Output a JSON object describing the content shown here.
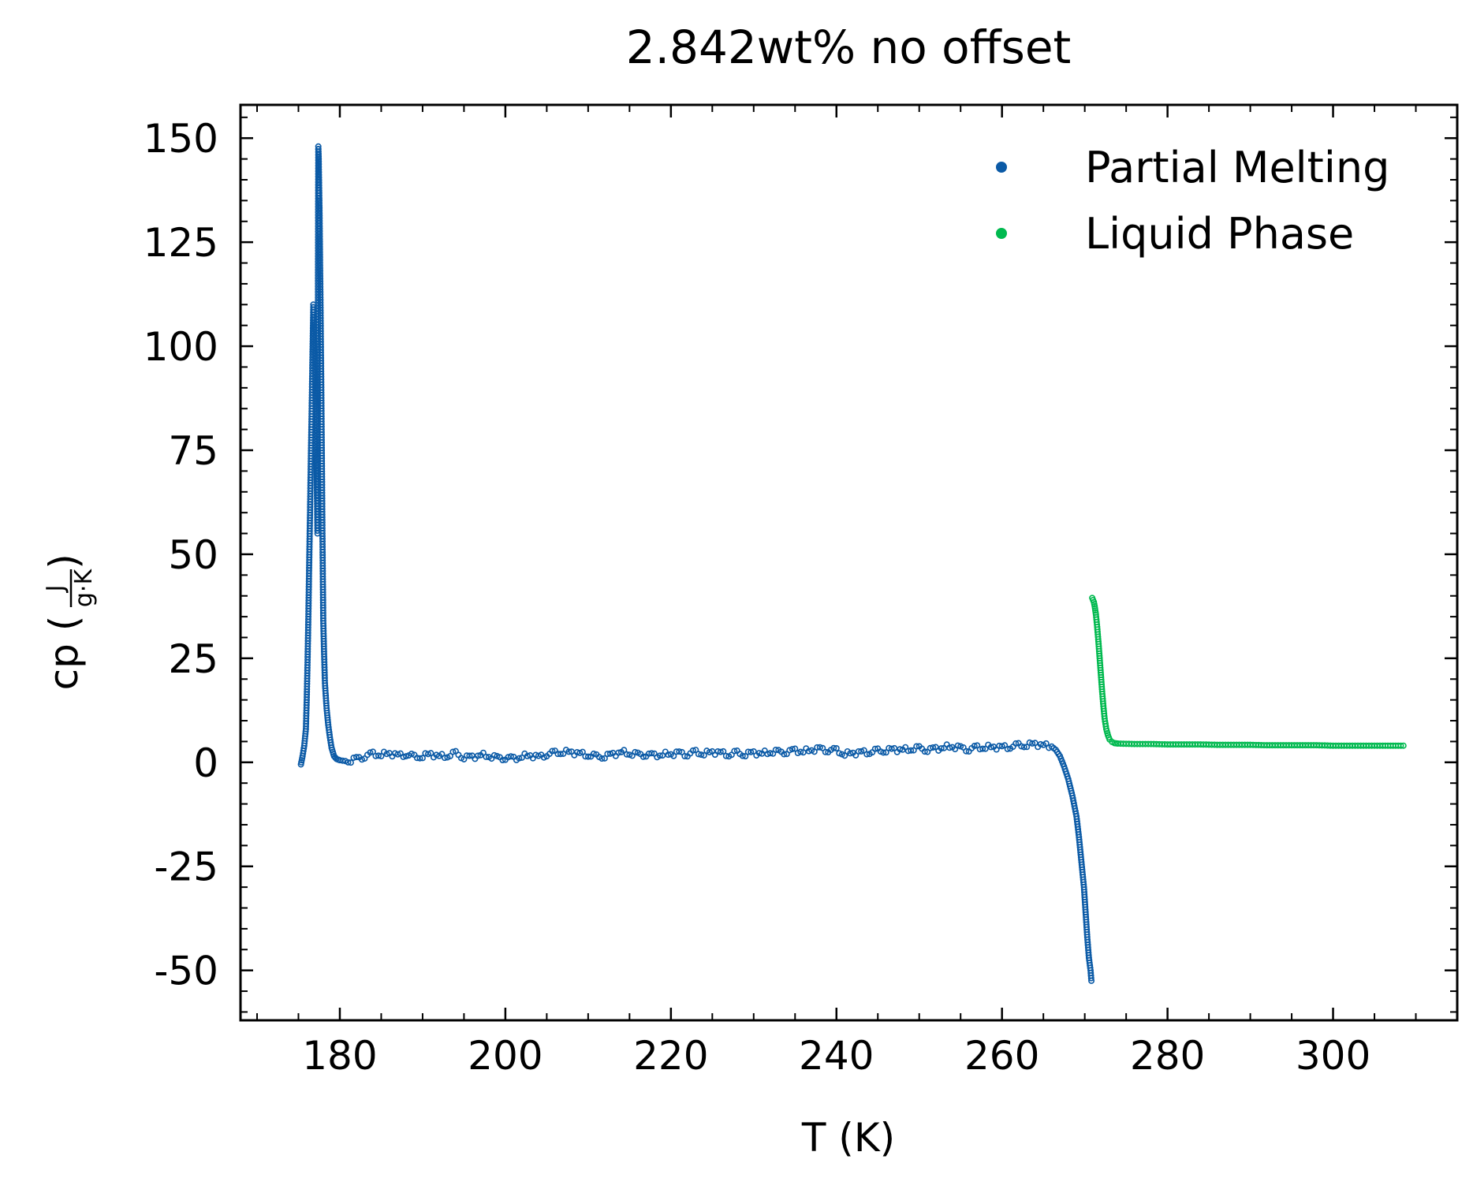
{
  "chart_data": {
    "type": "scatter",
    "title": "2.842wt% no offset",
    "xlabel": "T (K)",
    "ylabel": {
      "text": "cp (",
      "frac_num": "J",
      "frac_den": "g·K",
      "close": ")"
    },
    "xlim": [
      168,
      315
    ],
    "ylim": [
      -62,
      158
    ],
    "xticks": [
      180,
      200,
      220,
      240,
      260,
      280,
      300
    ],
    "xtick_labels": [
      "180",
      "200",
      "220",
      "240",
      "260",
      "280",
      "300"
    ],
    "yticks": [
      150,
      125,
      100,
      75,
      50,
      25,
      0,
      -25,
      -50
    ],
    "ytick_labels": [
      "150",
      "125",
      "100",
      "75",
      "50",
      "25",
      "0",
      "-25",
      "-50"
    ],
    "grid": false,
    "legend_position": "top-right",
    "series": [
      {
        "name": "Partial Melting",
        "color": "#0b5aa6",
        "marker": "hollow-circle",
        "points": [
          [
            175.3,
            -0.5
          ],
          [
            175.5,
            1.5
          ],
          [
            175.7,
            4
          ],
          [
            175.9,
            8
          ],
          [
            176.0,
            15
          ],
          [
            176.1,
            24
          ],
          [
            176.2,
            35
          ],
          [
            176.3,
            48
          ],
          [
            176.4,
            60
          ],
          [
            176.5,
            73
          ],
          [
            176.6,
            85
          ],
          [
            176.7,
            98
          ],
          [
            176.8,
            110
          ],
          [
            176.9,
            104
          ],
          [
            177.0,
            95
          ],
          [
            177.1,
            83
          ],
          [
            177.2,
            70
          ],
          [
            177.3,
            55
          ],
          [
            177.4,
            148
          ],
          [
            177.45,
            145
          ],
          [
            177.5,
            138
          ],
          [
            177.55,
            132
          ],
          [
            177.6,
            122
          ],
          [
            177.65,
            113
          ],
          [
            177.7,
            103
          ],
          [
            177.75,
            92
          ],
          [
            177.8,
            80
          ],
          [
            177.85,
            68
          ],
          [
            177.9,
            55
          ],
          [
            177.95,
            44
          ],
          [
            178.0,
            34
          ],
          [
            178.1,
            26
          ],
          [
            178.2,
            19
          ],
          [
            178.4,
            13
          ],
          [
            178.6,
            9
          ],
          [
            178.8,
            6
          ],
          [
            179.0,
            3.5
          ],
          [
            179.3,
            1.5
          ],
          [
            179.6,
            0.8
          ],
          [
            180,
            0.5
          ],
          [
            181,
            0.2
          ],
          [
            182,
            0.8
          ],
          [
            183,
            1.5
          ],
          [
            184,
            2
          ],
          [
            185,
            1.8
          ],
          [
            186,
            2.2
          ],
          [
            187,
            1.6
          ],
          [
            188,
            2.0
          ],
          [
            189,
            1.2
          ],
          [
            190,
            1.5
          ],
          [
            191,
            2
          ],
          [
            192,
            1.4
          ],
          [
            193,
            1.6
          ],
          [
            194,
            2.1
          ],
          [
            195,
            1.3
          ],
          [
            196,
            1.2
          ],
          [
            197,
            1.8
          ],
          [
            198,
            1.5
          ],
          [
            199,
            1
          ],
          [
            200,
            1.2
          ],
          [
            201,
            0.8
          ],
          [
            202,
            1.4
          ],
          [
            203,
            1.7
          ],
          [
            204,
            1.2
          ],
          [
            205,
            2.0
          ],
          [
            206,
            2.2
          ],
          [
            207,
            2.5
          ],
          [
            208,
            2.4
          ],
          [
            209,
            2.1
          ],
          [
            210,
            1.8
          ],
          [
            211,
            1.3
          ],
          [
            212,
            1.5
          ],
          [
            213,
            1.9
          ],
          [
            214,
            2.5
          ],
          [
            215,
            2.1
          ],
          [
            216,
            1.8
          ],
          [
            217,
            2.0
          ],
          [
            218,
            1.6
          ],
          [
            219,
            1.9
          ],
          [
            220,
            2.0
          ],
          [
            221,
            2.2
          ],
          [
            222,
            2.0
          ],
          [
            223,
            2.4
          ],
          [
            224,
            2.1
          ],
          [
            225,
            2.5
          ],
          [
            226,
            2.3
          ],
          [
            227,
            1.9
          ],
          [
            228,
            2.2
          ],
          [
            229,
            2.0
          ],
          [
            230,
            2.3
          ],
          [
            231,
            2.1
          ],
          [
            232,
            2.5
          ],
          [
            233,
            2.4
          ],
          [
            234,
            2.6
          ],
          [
            235,
            2.8
          ],
          [
            236,
            2.6
          ],
          [
            237,
            3.0
          ],
          [
            238,
            3.2
          ],
          [
            239,
            3.0
          ],
          [
            240,
            2.8
          ],
          [
            241,
            2.0
          ],
          [
            242,
            2.2
          ],
          [
            243,
            2.4
          ],
          [
            244,
            2.5
          ],
          [
            245,
            2.7
          ],
          [
            246,
            2.9
          ],
          [
            247,
            3.1
          ],
          [
            248,
            3.0
          ],
          [
            249,
            3.2
          ],
          [
            250,
            3.3
          ],
          [
            251,
            3.1
          ],
          [
            252,
            3.2
          ],
          [
            253,
            3.6
          ],
          [
            254,
            3.8
          ],
          [
            255,
            3.4
          ],
          [
            256,
            3.2
          ],
          [
            257,
            3.5
          ],
          [
            258,
            3.6
          ],
          [
            259,
            3.7
          ],
          [
            260,
            3.6
          ],
          [
            261,
            3.8
          ],
          [
            262,
            4.0
          ],
          [
            263,
            4.2
          ],
          [
            264,
            4.4
          ],
          [
            265,
            4.1
          ],
          [
            266,
            3.8
          ],
          [
            266.5,
            3.0
          ],
          [
            267,
            1.5
          ],
          [
            267.5,
            -1
          ],
          [
            268,
            -4
          ],
          [
            268.5,
            -8
          ],
          [
            269,
            -13
          ],
          [
            269.3,
            -18
          ],
          [
            269.6,
            -24
          ],
          [
            269.9,
            -30
          ],
          [
            270.1,
            -36
          ],
          [
            270.3,
            -42
          ],
          [
            270.5,
            -47
          ],
          [
            270.7,
            -50
          ],
          [
            270.8,
            -52.5
          ]
        ]
      },
      {
        "name": "Liquid Phase",
        "color": "#00b94f",
        "marker": "hollow-circle",
        "points": [
          [
            270.9,
            39.5
          ],
          [
            271.0,
            39
          ],
          [
            271.1,
            38.5
          ],
          [
            271.2,
            37.5
          ],
          [
            271.35,
            35.5
          ],
          [
            271.5,
            32.5
          ],
          [
            271.65,
            29
          ],
          [
            271.8,
            25
          ],
          [
            271.95,
            21
          ],
          [
            272.1,
            17
          ],
          [
            272.25,
            13.5
          ],
          [
            272.4,
            10.5
          ],
          [
            272.6,
            8
          ],
          [
            272.8,
            6.5
          ],
          [
            273.0,
            5.5
          ],
          [
            273.3,
            4.9
          ],
          [
            273.6,
            4.6
          ],
          [
            274,
            4.5
          ],
          [
            276,
            4.4
          ],
          [
            278,
            4.4
          ],
          [
            280,
            4.3
          ],
          [
            282,
            4.3
          ],
          [
            284,
            4.3
          ],
          [
            286,
            4.2
          ],
          [
            288,
            4.2
          ],
          [
            290,
            4.2
          ],
          [
            292,
            4.1
          ],
          [
            294,
            4.1
          ],
          [
            296,
            4.1
          ],
          [
            298,
            4.1
          ],
          [
            300,
            4.0
          ],
          [
            302,
            4.0
          ],
          [
            304,
            4.0
          ],
          [
            306,
            4.0
          ],
          [
            308.5,
            4.0
          ]
        ]
      }
    ]
  }
}
